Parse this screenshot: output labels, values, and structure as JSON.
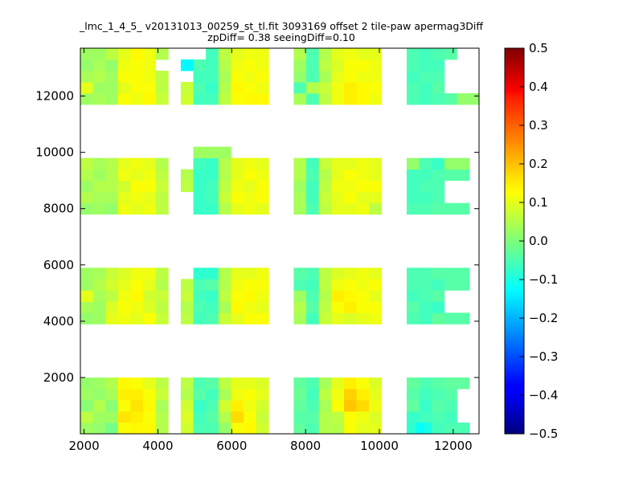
{
  "chart_data": {
    "type": "heatmap",
    "title_lines": [
      "_lmc_1_4_5_ v20131013_00259_st_tl.fit 3093169 offset 2 tile-paw apermag3Diff",
      "zpDiff= 0.38 seeingDiff=0.10"
    ],
    "xlabel": "",
    "ylabel": "",
    "xlim": [
      1900,
      12700
    ],
    "ylim": [
      0,
      13700
    ],
    "x_ticks": [
      2000,
      4000,
      6000,
      8000,
      10000,
      12000
    ],
    "y_ticks": [
      2000,
      4000,
      6000,
      8000,
      10000,
      12000
    ],
    "colormap": "jet",
    "clim": [
      -0.5,
      0.5
    ],
    "colorbar_ticks": [
      "0.5",
      "0.4",
      "0.3",
      "0.2",
      "0.1",
      "0.0",
      "−0.1",
      "−0.2",
      "−0.3",
      "−0.4",
      "−0.5"
    ],
    "cell_width": 340,
    "cell_height": 400,
    "x_columns": [
      1900,
      2240,
      2580,
      2920,
      3260,
      3600,
      3940,
      4280,
      4620,
      4960,
      5300,
      5640,
      5980,
      6320,
      6660,
      7000,
      7340,
      7680,
      8020,
      8360,
      8700,
      9040,
      9380,
      9720,
      10060,
      10400,
      10740,
      11080,
      11420,
      11760,
      12100,
      12440
    ],
    "blocks": [
      {
        "y0": 0,
        "values": [
          [
            0.03,
            0.02,
            -0.01,
            0.12,
            0.13,
            0.13,
            0.05,
            null,
            0.08,
            -0.05,
            -0.05,
            0.02,
            0.12,
            0.13,
            0.08,
            null,
            null,
            -0.03,
            -0.05,
            0.05,
            0.05,
            0.12,
            0.1,
            0.1,
            null,
            null,
            -0.08,
            -0.1,
            -0.06,
            -0.05,
            -0.05,
            null
          ],
          [
            0.06,
            0.03,
            0.03,
            0.15,
            0.14,
            0.12,
            0.05,
            null,
            0.09,
            -0.06,
            -0.04,
            0.05,
            0.16,
            0.12,
            0.07,
            null,
            null,
            -0.04,
            -0.04,
            0.05,
            0.06,
            0.12,
            0.11,
            0.09,
            null,
            null,
            -0.07,
            -0.06,
            -0.05,
            -0.06,
            null,
            null
          ],
          [
            0.01,
            0.05,
            0.01,
            0.12,
            0.15,
            0.13,
            0.04,
            null,
            0.08,
            -0.07,
            -0.05,
            0.08,
            0.14,
            0.11,
            0.08,
            null,
            null,
            -0.03,
            -0.05,
            0.04,
            0.12,
            0.18,
            0.16,
            0.11,
            null,
            null,
            -0.03,
            -0.07,
            -0.04,
            -0.05,
            null,
            null
          ],
          [
            0.03,
            0.02,
            0.04,
            0.14,
            0.14,
            0.12,
            0.07,
            null,
            0.05,
            -0.04,
            -0.06,
            0.04,
            0.11,
            0.12,
            0.1,
            null,
            null,
            -0.02,
            -0.06,
            0.06,
            0.11,
            0.17,
            0.14,
            0.1,
            null,
            null,
            -0.04,
            -0.06,
            -0.05,
            -0.04,
            null,
            null
          ],
          [
            0.02,
            0.03,
            0.05,
            0.13,
            0.12,
            0.1,
            0.06,
            null,
            0.06,
            -0.05,
            -0.04,
            0.06,
            0.1,
            0.1,
            0.09,
            null,
            null,
            -0.03,
            -0.05,
            0.04,
            0.1,
            0.14,
            0.12,
            0.09,
            null,
            null,
            -0.03,
            -0.05,
            -0.04,
            -0.03,
            -0.03,
            null
          ]
        ]
      },
      {
        "y0": 3900,
        "values": [
          [
            0.02,
            0.03,
            0.1,
            0.11,
            0.1,
            0.12,
            0.07,
            null,
            0.06,
            -0.06,
            -0.05,
            0.07,
            0.1,
            0.12,
            0.12,
            null,
            null,
            0.04,
            -0.06,
            0.07,
            0.1,
            0.09,
            0.1,
            0.11,
            null,
            null,
            -0.05,
            -0.06,
            -0.03,
            -0.04,
            -0.04,
            null
          ],
          [
            0.04,
            0.03,
            0.09,
            0.12,
            0.11,
            0.09,
            0.06,
            null,
            0.05,
            -0.05,
            -0.06,
            0.04,
            0.13,
            0.11,
            0.1,
            null,
            null,
            0.05,
            -0.04,
            0.06,
            0.12,
            0.14,
            0.12,
            0.12,
            null,
            null,
            -0.04,
            -0.06,
            -0.07,
            null,
            null,
            null
          ],
          [
            0.1,
            0.04,
            0.06,
            0.11,
            0.13,
            0.08,
            0.07,
            null,
            0.07,
            -0.06,
            -0.07,
            0.06,
            0.12,
            0.13,
            0.11,
            null,
            null,
            0.03,
            -0.05,
            0.05,
            0.14,
            0.13,
            0.12,
            0.1,
            null,
            null,
            -0.06,
            -0.05,
            -0.04,
            null,
            null,
            null
          ],
          [
            0.03,
            0.05,
            0.08,
            0.1,
            0.12,
            0.1,
            0.05,
            null,
            0.06,
            -0.05,
            -0.04,
            0.05,
            0.11,
            0.12,
            0.12,
            null,
            null,
            -0.05,
            -0.06,
            0.06,
            0.11,
            0.12,
            0.11,
            0.12,
            null,
            null,
            -0.05,
            -0.05,
            -0.06,
            -0.04,
            -0.04,
            null
          ],
          [
            0.03,
            0.04,
            0.07,
            0.09,
            0.11,
            0.11,
            0.06,
            null,
            null,
            -0.08,
            -0.08,
            0.05,
            0.1,
            0.1,
            0.11,
            null,
            null,
            -0.04,
            -0.05,
            0.06,
            0.09,
            0.1,
            0.11,
            0.1,
            null,
            null,
            -0.05,
            -0.05,
            -0.04,
            -0.04,
            -0.04,
            null
          ]
        ]
      },
      {
        "y0": 7800,
        "values": [
          [
            0.02,
            0.03,
            0.02,
            0.11,
            0.1,
            0.11,
            0.06,
            null,
            null,
            -0.07,
            -0.07,
            0.05,
            0.1,
            0.11,
            0.1,
            null,
            null,
            0.04,
            -0.05,
            0.06,
            0.1,
            0.1,
            0.11,
            0.06,
            null,
            null,
            -0.05,
            -0.05,
            -0.04,
            -0.04,
            -0.04,
            null
          ],
          [
            0.05,
            0.04,
            0.04,
            0.1,
            0.11,
            0.1,
            0.06,
            null,
            null,
            -0.07,
            -0.06,
            0.07,
            0.12,
            0.11,
            0.12,
            null,
            null,
            0.04,
            -0.06,
            0.07,
            0.1,
            0.12,
            0.1,
            0.1,
            null,
            null,
            -0.06,
            -0.06,
            -0.05,
            null,
            null,
            null
          ],
          [
            0.03,
            0.05,
            0.05,
            0.08,
            0.12,
            0.12,
            0.07,
            null,
            0.06,
            -0.07,
            -0.06,
            0.06,
            0.11,
            0.1,
            0.12,
            null,
            null,
            0.03,
            -0.06,
            0.06,
            0.11,
            0.11,
            0.12,
            0.12,
            null,
            null,
            -0.06,
            -0.05,
            -0.05,
            null,
            null,
            null
          ],
          [
            0.05,
            0.03,
            0.05,
            0.11,
            0.1,
            0.11,
            0.06,
            null,
            0.05,
            -0.07,
            -0.07,
            0.05,
            0.1,
            0.12,
            0.11,
            null,
            null,
            0.05,
            -0.05,
            0.05,
            0.1,
            0.12,
            0.11,
            0.1,
            null,
            null,
            -0.06,
            -0.06,
            -0.05,
            -0.04,
            -0.04,
            null
          ],
          [
            0.06,
            0.04,
            0.05,
            0.1,
            0.11,
            0.1,
            0.05,
            null,
            null,
            -0.06,
            -0.07,
            0.05,
            0.1,
            0.11,
            0.1,
            null,
            null,
            0.05,
            -0.06,
            0.07,
            0.1,
            0.1,
            0.11,
            0.1,
            null,
            null,
            0.02,
            -0.05,
            -0.07,
            0.02,
            0.02,
            null
          ],
          [
            null,
            null,
            null,
            null,
            null,
            null,
            null,
            null,
            null,
            0.03,
            0.03,
            0.03,
            null,
            null,
            null,
            null,
            null,
            null,
            null,
            null,
            null,
            null,
            null,
            null,
            null,
            null,
            null,
            null,
            null,
            null,
            null,
            null
          ]
        ]
      },
      {
        "y0": 11700,
        "values": [
          [
            0.03,
            0.04,
            0.03,
            0.12,
            0.11,
            0.13,
            0.07,
            null,
            0.08,
            -0.06,
            -0.06,
            0.06,
            0.12,
            0.13,
            0.13,
            null,
            null,
            0.04,
            -0.05,
            0.06,
            0.11,
            0.14,
            0.13,
            0.11,
            null,
            null,
            -0.05,
            -0.06,
            -0.05,
            -0.04,
            0.02,
            0.02
          ],
          [
            0.1,
            0.03,
            0.03,
            0.1,
            0.12,
            0.12,
            0.06,
            null,
            0.07,
            -0.05,
            -0.07,
            0.05,
            0.13,
            0.12,
            0.11,
            null,
            null,
            -0.05,
            0.05,
            0.07,
            0.11,
            0.14,
            0.13,
            0.12,
            null,
            null,
            -0.05,
            -0.06,
            -0.04,
            null,
            null,
            null
          ],
          [
            0.04,
            0.05,
            0.03,
            0.12,
            0.12,
            0.11,
            0.06,
            null,
            null,
            -0.06,
            -0.06,
            0.04,
            0.12,
            0.11,
            0.12,
            null,
            null,
            0.02,
            -0.05,
            0.04,
            0.1,
            0.12,
            0.11,
            0.11,
            null,
            null,
            -0.06,
            -0.05,
            -0.05,
            null,
            null,
            null
          ],
          [
            0.02,
            0.04,
            0.02,
            0.11,
            0.12,
            0.11,
            null,
            null,
            -0.13,
            -0.05,
            -0.06,
            0.05,
            0.11,
            0.12,
            0.11,
            null,
            null,
            0.03,
            -0.05,
            0.06,
            0.09,
            0.12,
            0.12,
            0.11,
            null,
            null,
            -0.05,
            -0.06,
            -0.06,
            null,
            null,
            null
          ],
          [
            0.03,
            0.03,
            0.06,
            0.1,
            0.13,
            0.11,
            0.05,
            null,
            null,
            null,
            -0.06,
            0.06,
            0.1,
            0.11,
            0.11,
            null,
            null,
            0.05,
            -0.05,
            0.05,
            0.1,
            0.11,
            0.1,
            0.1,
            null,
            null,
            -0.05,
            -0.06,
            -0.05,
            -0.04,
            null,
            null
          ]
        ]
      }
    ],
    "extra_cells": [
      {
        "x": 11000,
        "y": 0,
        "w": 220,
        "h": 400,
        "value": -0.12
      }
    ]
  }
}
